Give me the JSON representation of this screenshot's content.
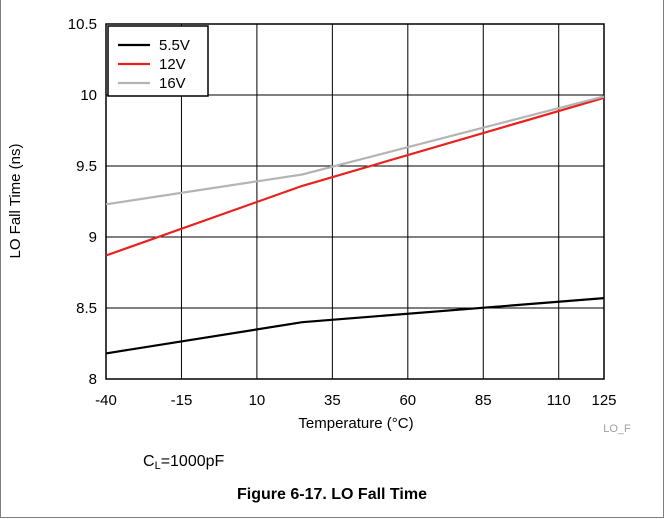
{
  "chart_data": {
    "type": "line",
    "xlabel": "Temperature (°C)",
    "ylabel": "LO Fall Time (ns)",
    "xlim": [
      -40,
      125
    ],
    "ylim": [
      8,
      10.5
    ],
    "x_ticks": [
      "-40",
      "-15",
      "10",
      "35",
      "60",
      "85",
      "110",
      "125"
    ],
    "y_ticks": [
      "8",
      "8.5",
      "9",
      "9.5",
      "10",
      "10.5"
    ],
    "grid": true,
    "legend_position": "top-left",
    "series": [
      {
        "name": "5.5V",
        "color": "#000000",
        "x": [
          -40,
          25,
          125
        ],
        "y": [
          8.18,
          8.4,
          8.57
        ]
      },
      {
        "name": "12V",
        "color": "#e8221e",
        "x": [
          -40,
          25,
          125
        ],
        "y": [
          8.87,
          9.36,
          9.98
        ]
      },
      {
        "name": "16V",
        "color": "#b4b4b4",
        "x": [
          -40,
          25,
          125
        ],
        "y": [
          9.23,
          9.44,
          9.99
        ]
      }
    ],
    "watermark": "LO_F"
  },
  "note": {
    "main": "C",
    "sub": "L",
    "rest": "=1000pF"
  },
  "caption": "Figure 6-17. LO Fall Time"
}
